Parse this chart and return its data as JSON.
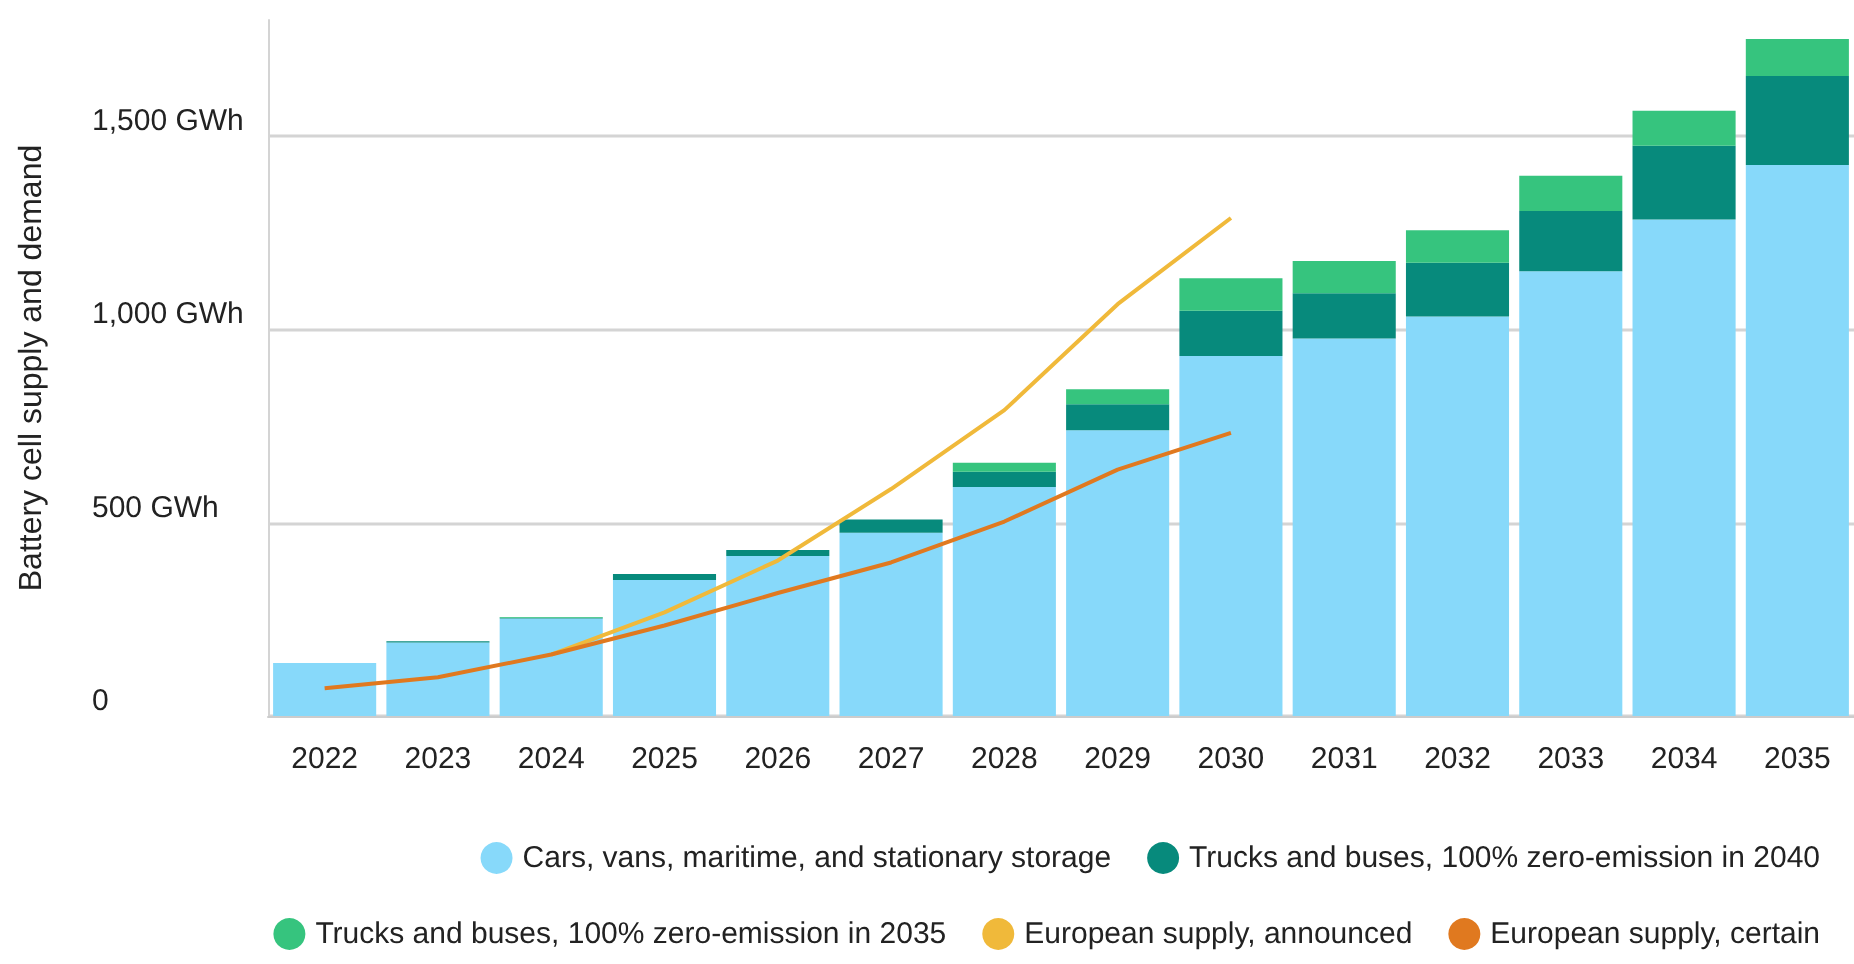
{
  "chart_data": {
    "type": "bar",
    "ylabel": "Battery cell supply and demand",
    "categories": [
      "2022",
      "2023",
      "2024",
      "2025",
      "2026",
      "2027",
      "2028",
      "2029",
      "2030",
      "2031",
      "2032",
      "2033",
      "2034",
      "2035"
    ],
    "stacked": true,
    "series": [
      {
        "name": "Cars, vans, maritime, and stationary storage",
        "color": "#87d9fa",
        "values": [
          137,
          190,
          252,
          352,
          414,
          474,
          592,
          739,
          931,
          976,
          1033,
          1150,
          1284,
          1425
        ]
      },
      {
        "name": "Trucks and buses, 100% zero-emission in 2040",
        "color": "#078a7c",
        "values": [
          0,
          3,
          2,
          15,
          15,
          34,
          40,
          67,
          117,
          117,
          139,
          156,
          191,
          230
        ]
      },
      {
        "name": "Trucks and buses, 100% zero-emission in 2035",
        "color": "#36c47e",
        "values": [
          0,
          0,
          2,
          0,
          0,
          0,
          23,
          39,
          84,
          84,
          84,
          91,
          90,
          96
        ]
      },
      {
        "name": "European supply, announced",
        "type": "line",
        "color": "#f0b93a",
        "values": [
          null,
          null,
          159,
          268,
          402,
          587,
          791,
          1065,
          1288,
          null,
          null,
          null,
          null,
          null
        ]
      },
      {
        "name": "European supply, certain",
        "type": "line",
        "color": "#e0791f",
        "values": [
          72,
          100,
          159,
          234,
          318,
          397,
          503,
          637,
          732,
          null,
          null,
          null,
          null,
          null
        ]
      }
    ],
    "yticks": [
      {
        "value": 0,
        "label": "0"
      },
      {
        "value": 500,
        "label": "500 GWh"
      },
      {
        "value": 1000,
        "label": "1,000 GWh"
      },
      {
        "value": 1500,
        "label": "1,500 GWh"
      }
    ],
    "ylim": [
      0,
      1800
    ],
    "grid": "y",
    "legend": "bottom",
    "marker": "none",
    "line_style": "solid"
  }
}
